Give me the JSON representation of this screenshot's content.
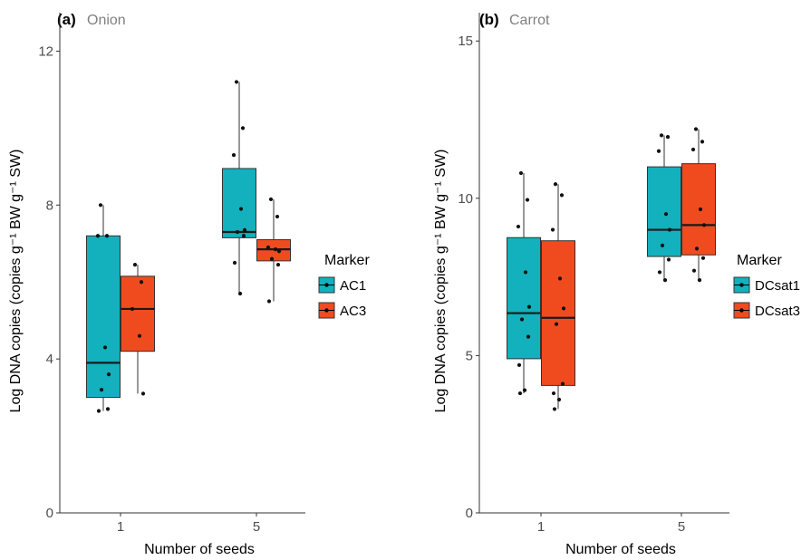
{
  "colors": {
    "ac1": "#12b1bd",
    "ac3": "#f04b1f",
    "dcsat1": "#12b1bd",
    "dcsat3": "#f04b1f",
    "axis": "#333333",
    "tick_label": "#4d4d4d",
    "subtitle": "#808080"
  },
  "chart_data": [
    {
      "type": "box",
      "panel_label": "(a)",
      "title": "Onion",
      "xlabel": "Number of seeds",
      "ylabel": "Log DNA copies (copies g⁻¹ BW g⁻¹ SW)",
      "ylim": [
        0,
        13
      ],
      "yticks": [
        0,
        4,
        8,
        12
      ],
      "categories": [
        "1",
        "5"
      ],
      "grid": false,
      "legend": {
        "title": "Marker",
        "position": "right"
      },
      "series": [
        {
          "name": "AC1",
          "color_key": "ac1",
          "boxes": [
            {
              "category": "1",
              "min": 2.65,
              "q1": 3.0,
              "median": 3.9,
              "q3": 7.2,
              "max": 8.0,
              "points": [
                8.0,
                7.2,
                7.2,
                4.3,
                3.6,
                3.2,
                2.7,
                2.65
              ]
            },
            {
              "category": "5",
              "min": 5.7,
              "q1": 7.15,
              "median": 7.3,
              "q3": 8.95,
              "max": 11.2,
              "points": [
                11.2,
                10.0,
                9.3,
                7.9,
                7.35,
                7.3,
                7.2,
                6.5,
                5.7
              ]
            }
          ]
        },
        {
          "name": "AC3",
          "color_key": "ac3",
          "boxes": [
            {
              "category": "1",
              "min": 3.1,
              "q1": 4.2,
              "median": 5.3,
              "q3": 6.15,
              "max": 6.45,
              "points": [
                6.45,
                6.0,
                5.3,
                4.6,
                3.1
              ]
            },
            {
              "category": "5",
              "min": 5.5,
              "q1": 6.55,
              "median": 6.85,
              "q3": 7.1,
              "max": 8.15,
              "points": [
                8.15,
                7.7,
                6.9,
                6.85,
                6.8,
                6.6,
                6.45,
                5.5
              ]
            }
          ]
        }
      ]
    },
    {
      "type": "box",
      "panel_label": "(b)",
      "title": "Carrot",
      "xlabel": "Number of seeds",
      "ylabel": "Log DNA copies (copies g⁻¹ BW g⁻¹ SW)",
      "ylim": [
        0,
        15.9
      ],
      "yticks": [
        0,
        5,
        10,
        15
      ],
      "categories": [
        "1",
        "5"
      ],
      "grid": false,
      "legend": {
        "title": "Marker",
        "position": "right"
      },
      "series": [
        {
          "name": "DCsat1",
          "color_key": "dcsat1",
          "boxes": [
            {
              "category": "1",
              "min": 3.8,
              "q1": 4.9,
              "median": 6.35,
              "q3": 8.75,
              "max": 10.8,
              "points": [
                10.8,
                9.95,
                9.1,
                7.65,
                6.55,
                6.15,
                5.6,
                4.7,
                3.9,
                3.8
              ]
            },
            {
              "category": "5",
              "min": 7.4,
              "q1": 8.15,
              "median": 9.0,
              "q3": 11.0,
              "max": 12.0,
              "points": [
                12.0,
                11.95,
                11.5,
                9.5,
                9.0,
                8.5,
                8.05,
                7.65,
                7.4
              ]
            }
          ]
        },
        {
          "name": "DCsat3",
          "color_key": "dcsat3",
          "boxes": [
            {
              "category": "1",
              "min": 3.3,
              "q1": 4.05,
              "median": 6.2,
              "q3": 8.65,
              "max": 10.45,
              "points": [
                10.45,
                10.1,
                9.0,
                7.45,
                6.5,
                6.0,
                4.1,
                3.8,
                3.6,
                3.3
              ]
            },
            {
              "category": "5",
              "min": 7.4,
              "q1": 8.2,
              "median": 9.15,
              "q3": 11.1,
              "max": 12.2,
              "points": [
                12.2,
                11.8,
                11.55,
                9.65,
                9.15,
                8.4,
                8.1,
                7.7,
                7.4
              ]
            }
          ]
        }
      ]
    }
  ]
}
